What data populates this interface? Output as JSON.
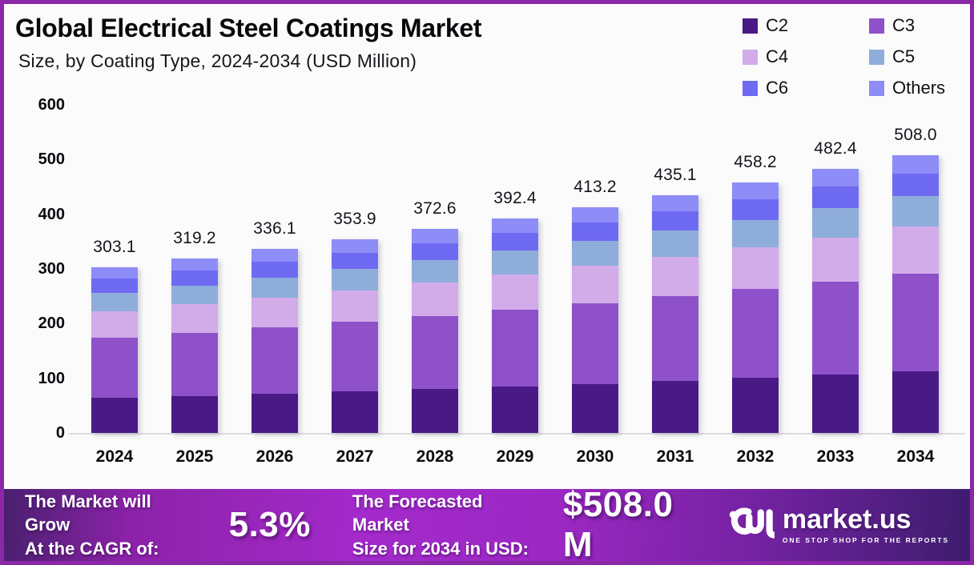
{
  "frame": {
    "border_color": "#8c27a8",
    "background": "#fbfbfb"
  },
  "header": {
    "title": "Global Electrical Steel Coatings Market",
    "subtitle": "Size, by Coating Type, 2024-2034 (USD Million)"
  },
  "chart_data": {
    "type": "bar",
    "stacked": true,
    "title": "Global Electrical Steel Coatings Market",
    "subtitle": "Size, by Coating Type, 2024-2034 (USD Million)",
    "xlabel": "",
    "ylabel": "USD Million",
    "ylim": [
      0,
      600
    ],
    "yticks": [
      600,
      500,
      400,
      300,
      200,
      100,
      0
    ],
    "grid": false,
    "legend_position": "top-right",
    "categories": [
      "2024",
      "2025",
      "2026",
      "2027",
      "2028",
      "2029",
      "2030",
      "2031",
      "2032",
      "2033",
      "2034"
    ],
    "totals": [
      303.1,
      319.2,
      336.1,
      353.9,
      372.6,
      392.4,
      413.2,
      435.1,
      458.2,
      482.4,
      508.0
    ],
    "series": [
      {
        "name": "C2",
        "color": "#491985",
        "values": [
          64.0,
          67.7,
          71.6,
          75.8,
          80.1,
          84.8,
          89.7,
          94.8,
          100.3,
          106.1,
          112.2
        ]
      },
      {
        "name": "C3",
        "color": "#8e51c9",
        "values": [
          110.1,
          115.6,
          121.3,
          127.4,
          133.8,
          140.5,
          147.5,
          154.9,
          162.7,
          170.8,
          179.3
        ]
      },
      {
        "name": "C4",
        "color": "#d2abe9",
        "values": [
          49.0,
          51.8,
          54.8,
          57.9,
          61.2,
          64.7,
          68.4,
          72.3,
          76.5,
          80.8,
          85.4
        ]
      },
      {
        "name": "C5",
        "color": "#8fadda",
        "values": [
          33.0,
          34.8,
          36.7,
          38.7,
          40.8,
          43.0,
          45.3,
          47.8,
          50.4,
          53.1,
          56.0
        ]
      },
      {
        "name": "C6",
        "color": "#6f6af2",
        "values": [
          26.0,
          27.3,
          28.6,
          29.9,
          31.3,
          32.8,
          34.4,
          36.0,
          37.7,
          39.5,
          41.4
        ]
      },
      {
        "name": "Others",
        "color": "#8e8cf7",
        "values": [
          21.0,
          22.0,
          23.1,
          24.2,
          25.4,
          26.6,
          27.9,
          29.3,
          30.6,
          32.1,
          33.7
        ]
      }
    ]
  },
  "footer": {
    "left_label_line1": "The Market will Grow",
    "left_label_line2": "At the CAGR of:",
    "cagr_value": "5.3%",
    "right_label_line1": "The Forecasted Market",
    "right_label_line2": "Size for 2034 in USD:",
    "forecast_value": "$508.0 M",
    "brand_name": "market.us",
    "brand_tagline": "ONE STOP SHOP FOR THE REPORTS"
  }
}
